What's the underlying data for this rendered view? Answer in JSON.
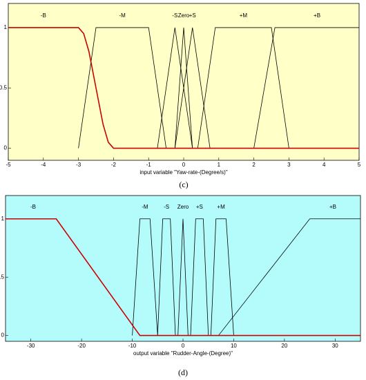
{
  "chart_data": [
    {
      "type": "line",
      "caption": "(c)",
      "xlabel": "input variable \"Yaw-rate-(Degree/s)\"",
      "background": "#ffffc8",
      "xlim": [
        -5,
        5
      ],
      "ylim": [
        -0.1,
        1.2
      ],
      "xticks": [
        -5,
        -4,
        -3,
        -2,
        -1,
        0,
        1,
        2,
        3,
        4,
        5
      ],
      "yticks": [
        0,
        0.5,
        1
      ],
      "series": [
        {
          "name": "-B",
          "color": "#cc0000",
          "x": [
            -5,
            -3,
            -2.85,
            -2.7,
            -2.5,
            -2.3,
            -2.15,
            -2,
            5
          ],
          "values": [
            1,
            1,
            0.95,
            0.8,
            0.5,
            0.2,
            0.05,
            0,
            0
          ]
        },
        {
          "name": "-M",
          "color": "#000000",
          "x": [
            -3,
            -2.5,
            -1,
            -0.5
          ],
          "values": [
            0,
            1,
            1,
            0
          ]
        },
        {
          "name": "-S",
          "color": "#000000",
          "x": [
            -0.75,
            -0.25,
            0.25
          ],
          "values": [
            0,
            1,
            0
          ]
        },
        {
          "name": "Zero",
          "color": "#000000",
          "x": [
            -0.25,
            0,
            0.25
          ],
          "values": [
            0,
            1,
            0
          ]
        },
        {
          "name": "+S",
          "color": "#000000",
          "x": [
            -0.25,
            0.25,
            0.75
          ],
          "values": [
            0,
            1,
            0
          ]
        },
        {
          "name": "+M",
          "color": "#000000",
          "x": [
            0.4,
            0.9,
            2.5,
            3
          ],
          "values": [
            0,
            1,
            1,
            0
          ]
        },
        {
          "name": "+B",
          "color": "#000000",
          "x": [
            2,
            2.6,
            5
          ],
          "values": [
            0,
            1,
            1
          ]
        }
      ]
    },
    {
      "type": "line",
      "caption": "(d)",
      "xlabel": "output variable \"Rudder-Angle-(Degree)\"",
      "background": "#b4fcfc",
      "xlim": [
        -35,
        35
      ],
      "ylim": [
        -0.05,
        1.2
      ],
      "xticks": [
        -30,
        -20,
        -10,
        0,
        10,
        20,
        30
      ],
      "yticks": [
        0,
        0.5,
        1
      ],
      "series": [
        {
          "name": "-B",
          "color": "#cc0000",
          "x": [
            -35,
            -25,
            -8.5,
            35
          ],
          "values": [
            1,
            1,
            0,
            0
          ]
        },
        {
          "name": "-M",
          "color": "#000000",
          "x": [
            -10,
            -8.5,
            -6.5,
            -5
          ],
          "values": [
            0,
            1,
            1,
            0
          ]
        },
        {
          "name": "-S",
          "color": "#000000",
          "x": [
            -5,
            -4,
            -2.5,
            -1.5
          ],
          "values": [
            0,
            1,
            1,
            0
          ]
        },
        {
          "name": "Zero",
          "color": "#000000",
          "x": [
            -1,
            0,
            1
          ],
          "values": [
            0,
            1,
            0
          ]
        },
        {
          "name": "+S",
          "color": "#000000",
          "x": [
            1.5,
            2.5,
            4,
            5
          ],
          "values": [
            0,
            1,
            1,
            0
          ]
        },
        {
          "name": "+M",
          "color": "#000000",
          "x": [
            5.5,
            6.5,
            8.5,
            10
          ],
          "values": [
            0,
            1,
            1,
            0
          ]
        },
        {
          "name": "+B",
          "color": "#000000",
          "x": [
            7,
            25,
            35
          ],
          "values": [
            0,
            1,
            1
          ]
        }
      ]
    }
  ]
}
